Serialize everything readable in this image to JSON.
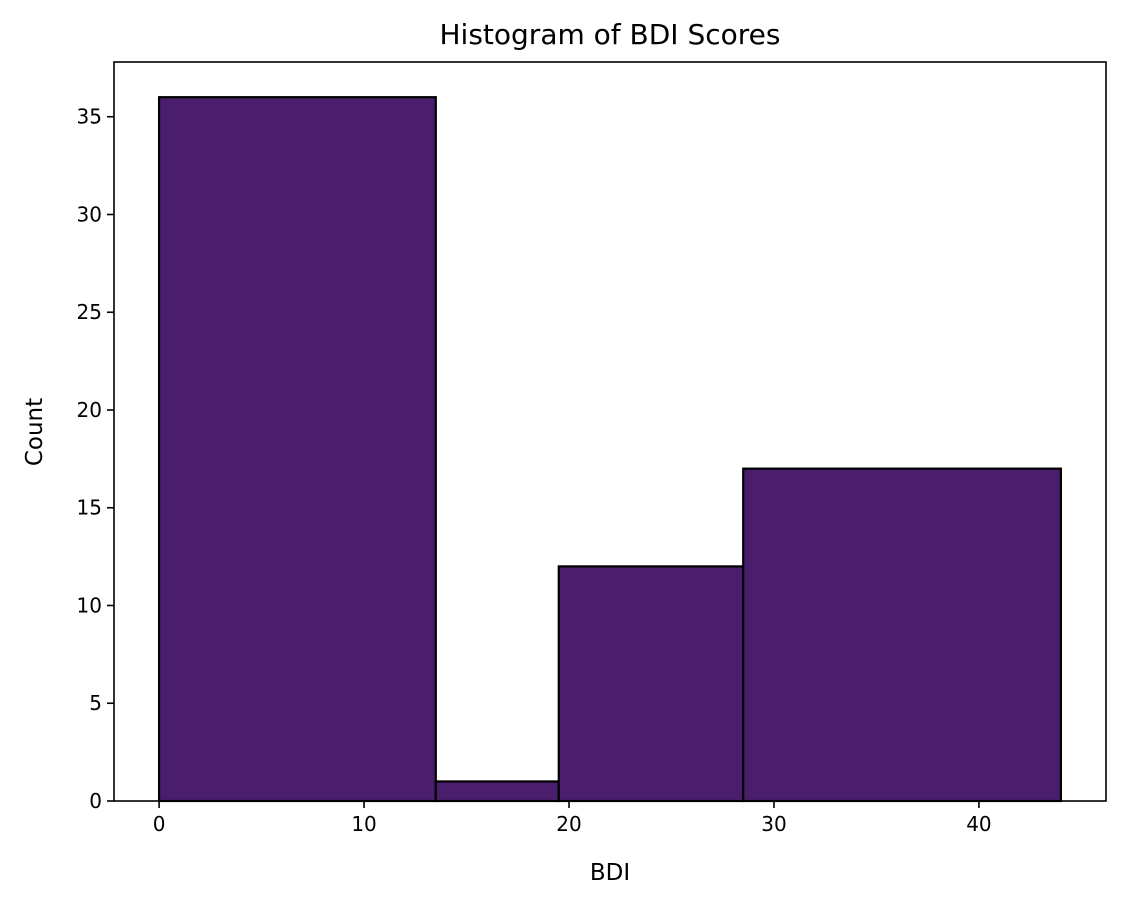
{
  "chart_data": {
    "type": "bar",
    "title": "Histogram of BDI Scores",
    "xlabel": "BDI",
    "ylabel": "Count",
    "bins": [
      {
        "start": 0,
        "end": 13.5,
        "count": 36
      },
      {
        "start": 13.5,
        "end": 19.5,
        "count": 1
      },
      {
        "start": 19.5,
        "end": 28.5,
        "count": 12
      },
      {
        "start": 28.5,
        "end": 44,
        "count": 17
      }
    ],
    "xlim": [
      -2.2,
      46.2
    ],
    "ylim": [
      0,
      37.8
    ],
    "xticks": [
      0,
      10,
      20,
      30,
      40
    ],
    "yticks": [
      0,
      5,
      10,
      15,
      20,
      25,
      30,
      35
    ],
    "bar_color": "#4a1e6c",
    "edge_color": "#000000",
    "grid": false,
    "legend": false
  }
}
